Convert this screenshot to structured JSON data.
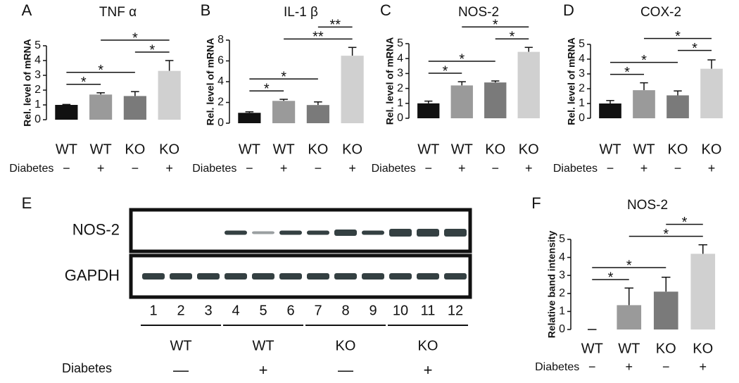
{
  "chart_data": [
    {
      "type": "bar",
      "panel": "A",
      "title": "TNF α",
      "ylabel": "Rel. level of mRNA",
      "categories": [
        "WT",
        "WT",
        "KO",
        "KO"
      ],
      "condition_label": "Diabetes",
      "conditions": [
        "−",
        "+",
        "−",
        "+"
      ],
      "values": [
        1.0,
        1.7,
        1.6,
        3.3
      ],
      "errors": [
        0.03,
        0.12,
        0.3,
        0.7
      ],
      "colors": [
        "#111111",
        "#9a9a9a",
        "#7a7a7a",
        "#d0d0d0"
      ],
      "ylim": [
        0,
        5
      ],
      "yticks": [
        0,
        1,
        2,
        3,
        4,
        5
      ],
      "annotations": [
        {
          "between": [
            0,
            1
          ],
          "label": "*"
        },
        {
          "between": [
            0,
            2
          ],
          "label": "*"
        },
        {
          "between": [
            2,
            3
          ],
          "label": "*"
        },
        {
          "between": [
            1,
            3
          ],
          "label": "*"
        }
      ]
    },
    {
      "type": "bar",
      "panel": "B",
      "title": "IL-1 β",
      "ylabel": "Rel. level of mRNA",
      "categories": [
        "WT",
        "WT",
        "KO",
        "KO"
      ],
      "condition_label": "Diabetes",
      "conditions": [
        "−",
        "+",
        "−",
        "+"
      ],
      "values": [
        1.0,
        2.15,
        1.75,
        6.5
      ],
      "errors": [
        0.1,
        0.15,
        0.3,
        0.8
      ],
      "colors": [
        "#111111",
        "#9a9a9a",
        "#7a7a7a",
        "#d0d0d0"
      ],
      "ylim": [
        0,
        8
      ],
      "yticks": [
        0,
        2,
        4,
        6,
        8
      ],
      "annotations": [
        {
          "between": [
            0,
            1
          ],
          "label": "*"
        },
        {
          "between": [
            0,
            2
          ],
          "label": "*"
        },
        {
          "between": [
            1,
            3
          ],
          "label": "**"
        },
        {
          "between": [
            2,
            3
          ],
          "label": "**"
        }
      ]
    },
    {
      "type": "bar",
      "panel": "C",
      "title": "NOS-2",
      "ylabel": "Rel. level of mRNA",
      "categories": [
        "WT",
        "WT",
        "KO",
        "KO"
      ],
      "condition_label": "Diabetes",
      "conditions": [
        "−",
        "+",
        "−",
        "+"
      ],
      "values": [
        1.0,
        2.2,
        2.4,
        4.45
      ],
      "errors": [
        0.15,
        0.25,
        0.1,
        0.3
      ],
      "colors": [
        "#111111",
        "#9a9a9a",
        "#7a7a7a",
        "#d0d0d0"
      ],
      "ylim": [
        0,
        5
      ],
      "yticks": [
        0,
        1,
        2,
        3,
        4,
        5
      ],
      "annotations": [
        {
          "between": [
            0,
            1
          ],
          "label": "*"
        },
        {
          "between": [
            0,
            2
          ],
          "label": "*"
        },
        {
          "between": [
            2,
            3
          ],
          "label": "*"
        },
        {
          "between": [
            1,
            3
          ],
          "label": "*"
        }
      ]
    },
    {
      "type": "bar",
      "panel": "D",
      "title": "COX-2",
      "ylabel": "Rel. level of mRNA",
      "categories": [
        "WT",
        "WT",
        "KO",
        "KO"
      ],
      "condition_label": "Diabetes",
      "conditions": [
        "−",
        "+",
        "−",
        "+"
      ],
      "values": [
        1.0,
        1.9,
        1.55,
        3.35
      ],
      "errors": [
        0.2,
        0.5,
        0.3,
        0.6
      ],
      "colors": [
        "#111111",
        "#9a9a9a",
        "#7a7a7a",
        "#d0d0d0"
      ],
      "ylim": [
        0,
        5
      ],
      "yticks": [
        0,
        1,
        2,
        3,
        4,
        5
      ],
      "annotations": [
        {
          "between": [
            0,
            1
          ],
          "label": "*"
        },
        {
          "between": [
            0,
            2
          ],
          "label": "*"
        },
        {
          "between": [
            2,
            3
          ],
          "label": "*"
        },
        {
          "between": [
            1,
            3
          ],
          "label": "*"
        }
      ]
    },
    {
      "type": "bar",
      "panel": "F",
      "title": "NOS-2",
      "ylabel": "Relative band intensity",
      "categories": [
        "WT",
        "WT",
        "KO",
        "KO"
      ],
      "condition_label": "Diabetes",
      "conditions": [
        "−",
        "+",
        "−",
        "+"
      ],
      "values": [
        0,
        1.35,
        2.1,
        4.2
      ],
      "errors": [
        0,
        0.95,
        0.8,
        0.5
      ],
      "colors": [
        "#111111",
        "#9a9a9a",
        "#7a7a7a",
        "#d0d0d0"
      ],
      "ylim": [
        0,
        5
      ],
      "yticks": [
        0,
        1,
        2,
        3,
        4,
        5
      ],
      "annotations": [
        {
          "between": [
            0,
            1
          ],
          "label": "*"
        },
        {
          "between": [
            0,
            2
          ],
          "label": "*"
        },
        {
          "between": [
            1,
            3
          ],
          "label": "*"
        },
        {
          "between": [
            2,
            3
          ],
          "label": "*"
        }
      ]
    }
  ],
  "blot": {
    "panel": "E",
    "rows": [
      "NOS-2",
      "GAPDH"
    ],
    "lanes": [
      1,
      2,
      3,
      4,
      5,
      6,
      7,
      8,
      9,
      10,
      11,
      12
    ],
    "groups": [
      "WT",
      "WT",
      "KO",
      "KO"
    ],
    "condition_label": "Diabetes",
    "conditions": [
      "—",
      "+",
      "—",
      "+"
    ]
  }
}
